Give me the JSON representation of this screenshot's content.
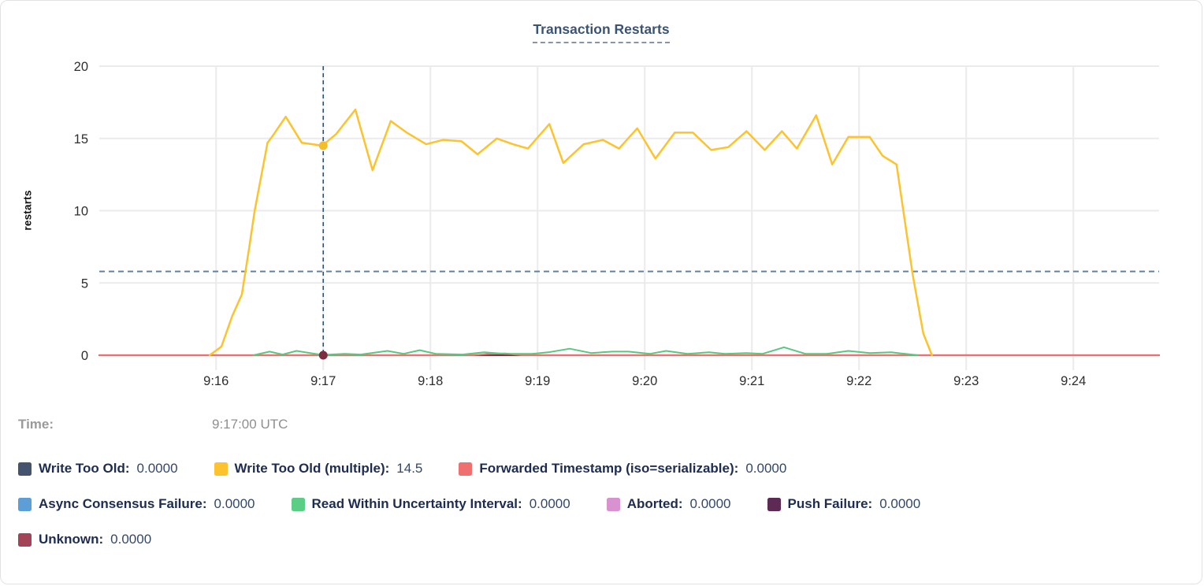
{
  "title": "Transaction Restarts",
  "y_axis": {
    "label": "restarts",
    "ticks": [
      0,
      5,
      10,
      15,
      20
    ],
    "max": 20
  },
  "x_axis": {
    "tick_labels": [
      "9:16",
      "9:17",
      "9:18",
      "9:19",
      "9:20",
      "9:21",
      "9:22",
      "9:23",
      "9:24"
    ]
  },
  "hover": {
    "time_label": "Time:",
    "time_value": "9:17:00 UTC"
  },
  "colors": {
    "grid": "#ebebeb",
    "avg_dashed_line": "#64809f",
    "crosshair": "#2f5373",
    "tick_text": "#2e2e2e",
    "title_text": "#3c5474"
  },
  "legend": {
    "rows": [
      [
        {
          "label": "Write Too Old:",
          "value": "0.0000",
          "color": "#46536e"
        },
        {
          "label": "Write Too Old (multiple):",
          "value": "14.5",
          "color": "#fdc32f"
        },
        {
          "label": "Forwarded Timestamp (iso=serializable):",
          "value": "0.0000",
          "color": "#ee7170"
        }
      ],
      [
        {
          "label": "Async Consensus Failure:",
          "value": "0.0000",
          "color": "#5b9fd6"
        },
        {
          "label": "Read Within Uncertainty Interval:",
          "value": "0.0000",
          "color": "#5bce86"
        },
        {
          "label": "Aborted:",
          "value": "0.0000",
          "color": "#d792cf"
        },
        {
          "label": "Push Failure:",
          "value": "0.0000",
          "color": "#5d2a55"
        }
      ],
      [
        {
          "label": "Unknown:",
          "value": "0.0000",
          "color": "#a34358"
        }
      ]
    ]
  },
  "chart_data": {
    "type": "line",
    "title": "Transaction Restarts",
    "ylabel": "restarts",
    "ylim": [
      0,
      20
    ],
    "x_unit": "minutes after 9:15 UTC",
    "x_domain": [
      -0.09,
      9.8
    ],
    "x_ticks": [
      {
        "t": 1,
        "label": "9:16"
      },
      {
        "t": 2,
        "label": "9:17"
      },
      {
        "t": 3,
        "label": "9:18"
      },
      {
        "t": 4,
        "label": "9:19"
      },
      {
        "t": 5,
        "label": "9:20"
      },
      {
        "t": 6,
        "label": "9:21"
      },
      {
        "t": 7,
        "label": "9:22"
      },
      {
        "t": 8,
        "label": "9:23"
      },
      {
        "t": 9,
        "label": "9:24"
      }
    ],
    "grid": true,
    "legend_position": "bottom",
    "avg_line": {
      "v": 5.8,
      "style": "dashed"
    },
    "crosshair": {
      "t": 2,
      "time": "9:17:00 UTC",
      "points": [
        {
          "series": "Write Too Old (multiple)",
          "v": 14.5,
          "color": "#f5bd2a"
        },
        {
          "series": "Unknown",
          "v": 0,
          "color": "#7e2c3f"
        }
      ]
    },
    "series": [
      {
        "name": "Unknown",
        "color": "#8d2741",
        "width": 2.2,
        "points": [
          [
            -0.09,
            0
          ],
          [
            9.8,
            0
          ]
        ]
      },
      {
        "name": "Forwarded Timestamp (iso=serializable)",
        "color": "#ee7170",
        "width": 2,
        "points": [
          [
            -0.09,
            0
          ],
          [
            3.4,
            0
          ],
          [
            3.55,
            0.1
          ],
          [
            3.7,
            0.12
          ],
          [
            3.85,
            0
          ],
          [
            9.8,
            0
          ]
        ]
      },
      {
        "name": "Read Within Uncertainty Interval",
        "color": "#58c77f",
        "width": 2,
        "points": [
          [
            1.35,
            0
          ],
          [
            1.5,
            0.25
          ],
          [
            1.62,
            0.05
          ],
          [
            1.75,
            0.3
          ],
          [
            1.99,
            0.02
          ],
          [
            2.2,
            0.1
          ],
          [
            2.35,
            0.05
          ],
          [
            2.6,
            0.3
          ],
          [
            2.75,
            0.1
          ],
          [
            2.9,
            0.35
          ],
          [
            3.05,
            0.1
          ],
          [
            3.3,
            0.05
          ],
          [
            3.5,
            0.2
          ],
          [
            3.7,
            0.1
          ],
          [
            3.95,
            0.1
          ],
          [
            4.1,
            0.2
          ],
          [
            4.3,
            0.45
          ],
          [
            4.5,
            0.15
          ],
          [
            4.7,
            0.25
          ],
          [
            4.85,
            0.25
          ],
          [
            5.05,
            0.1
          ],
          [
            5.2,
            0.3
          ],
          [
            5.4,
            0.1
          ],
          [
            5.6,
            0.2
          ],
          [
            5.75,
            0.1
          ],
          [
            5.95,
            0.15
          ],
          [
            6.1,
            0.1
          ],
          [
            6.3,
            0.55
          ],
          [
            6.5,
            0.1
          ],
          [
            6.7,
            0.1
          ],
          [
            6.9,
            0.3
          ],
          [
            7.1,
            0.15
          ],
          [
            7.3,
            0.2
          ],
          [
            7.55,
            0
          ]
        ]
      },
      {
        "name": "Write Too Old (multiple)",
        "color": "#fdc32f",
        "width": 2.5,
        "points": [
          [
            0.94,
            0
          ],
          [
            1.05,
            0.6
          ],
          [
            1.15,
            2.7
          ],
          [
            1.24,
            4.2
          ],
          [
            1.31,
            7.5
          ],
          [
            1.36,
            10
          ],
          [
            1.48,
            14.7
          ],
          [
            1.53,
            15.2
          ],
          [
            1.65,
            16.5
          ],
          [
            1.8,
            14.7
          ],
          [
            1.9,
            14.6
          ],
          [
            1.99,
            14.5
          ],
          [
            2.12,
            15.3
          ],
          [
            2.3,
            17
          ],
          [
            2.46,
            12.8
          ],
          [
            2.63,
            16.2
          ],
          [
            2.78,
            15.4
          ],
          [
            2.96,
            14.6
          ],
          [
            3.12,
            14.9
          ],
          [
            3.29,
            14.8
          ],
          [
            3.44,
            13.9
          ],
          [
            3.62,
            15
          ],
          [
            3.77,
            14.6
          ],
          [
            3.91,
            14.3
          ],
          [
            4.11,
            16
          ],
          [
            4.24,
            13.3
          ],
          [
            4.43,
            14.6
          ],
          [
            4.61,
            14.9
          ],
          [
            4.76,
            14.3
          ],
          [
            4.93,
            15.7
          ],
          [
            5.1,
            13.6
          ],
          [
            5.28,
            15.4
          ],
          [
            5.45,
            15.4
          ],
          [
            5.62,
            14.2
          ],
          [
            5.78,
            14.4
          ],
          [
            5.95,
            15.5
          ],
          [
            6.12,
            14.2
          ],
          [
            6.28,
            15.5
          ],
          [
            6.42,
            14.3
          ],
          [
            6.6,
            16.6
          ],
          [
            6.75,
            13.2
          ],
          [
            6.9,
            15.1
          ],
          [
            7.1,
            15.1
          ],
          [
            7.22,
            13.8
          ],
          [
            7.35,
            13.2
          ],
          [
            7.5,
            5.6
          ],
          [
            7.6,
            1.5
          ],
          [
            7.68,
            0
          ]
        ]
      }
    ]
  }
}
